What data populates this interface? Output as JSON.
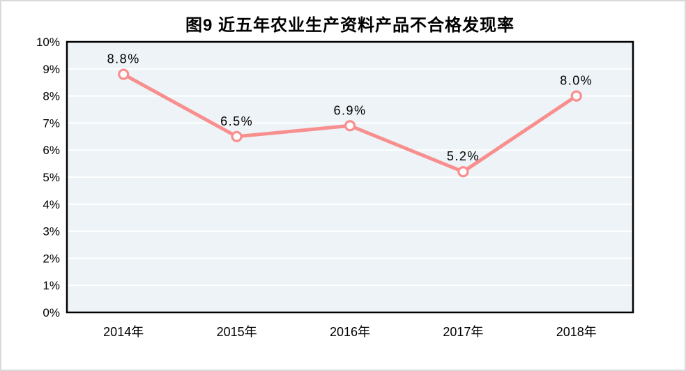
{
  "chart_data": {
    "type": "line",
    "title": "图9 近五年农业生产资料产品不合格发现率",
    "categories": [
      "2014年",
      "2015年",
      "2016年",
      "2017年",
      "2018年"
    ],
    "series": [
      {
        "name": "不合格发现率",
        "values": [
          8.8,
          6.5,
          6.9,
          5.2,
          8.0
        ]
      }
    ],
    "data_labels": [
      "8.8%",
      "6.5%",
      "6.9%",
      "5.2%",
      "8.0%"
    ],
    "xlabel": "",
    "ylabel": "",
    "ylim": [
      0,
      10
    ],
    "y_tick_step": 1,
    "y_tick_labels": [
      "0%",
      "1%",
      "2%",
      "3%",
      "4%",
      "5%",
      "6%",
      "7%",
      "8%",
      "9%",
      "10%"
    ],
    "grid": true,
    "legend_position": "none",
    "marker": "open-circle"
  },
  "style": {
    "line_color": "#F88F8E",
    "marker_fill": "#FFFFFF",
    "plot_background": "#EDF3F7",
    "gridline_color": "#FFFFFF",
    "axis_border_color": "#000000",
    "text_color": "#000000",
    "figure_border_color": "#D9D9D9"
  }
}
